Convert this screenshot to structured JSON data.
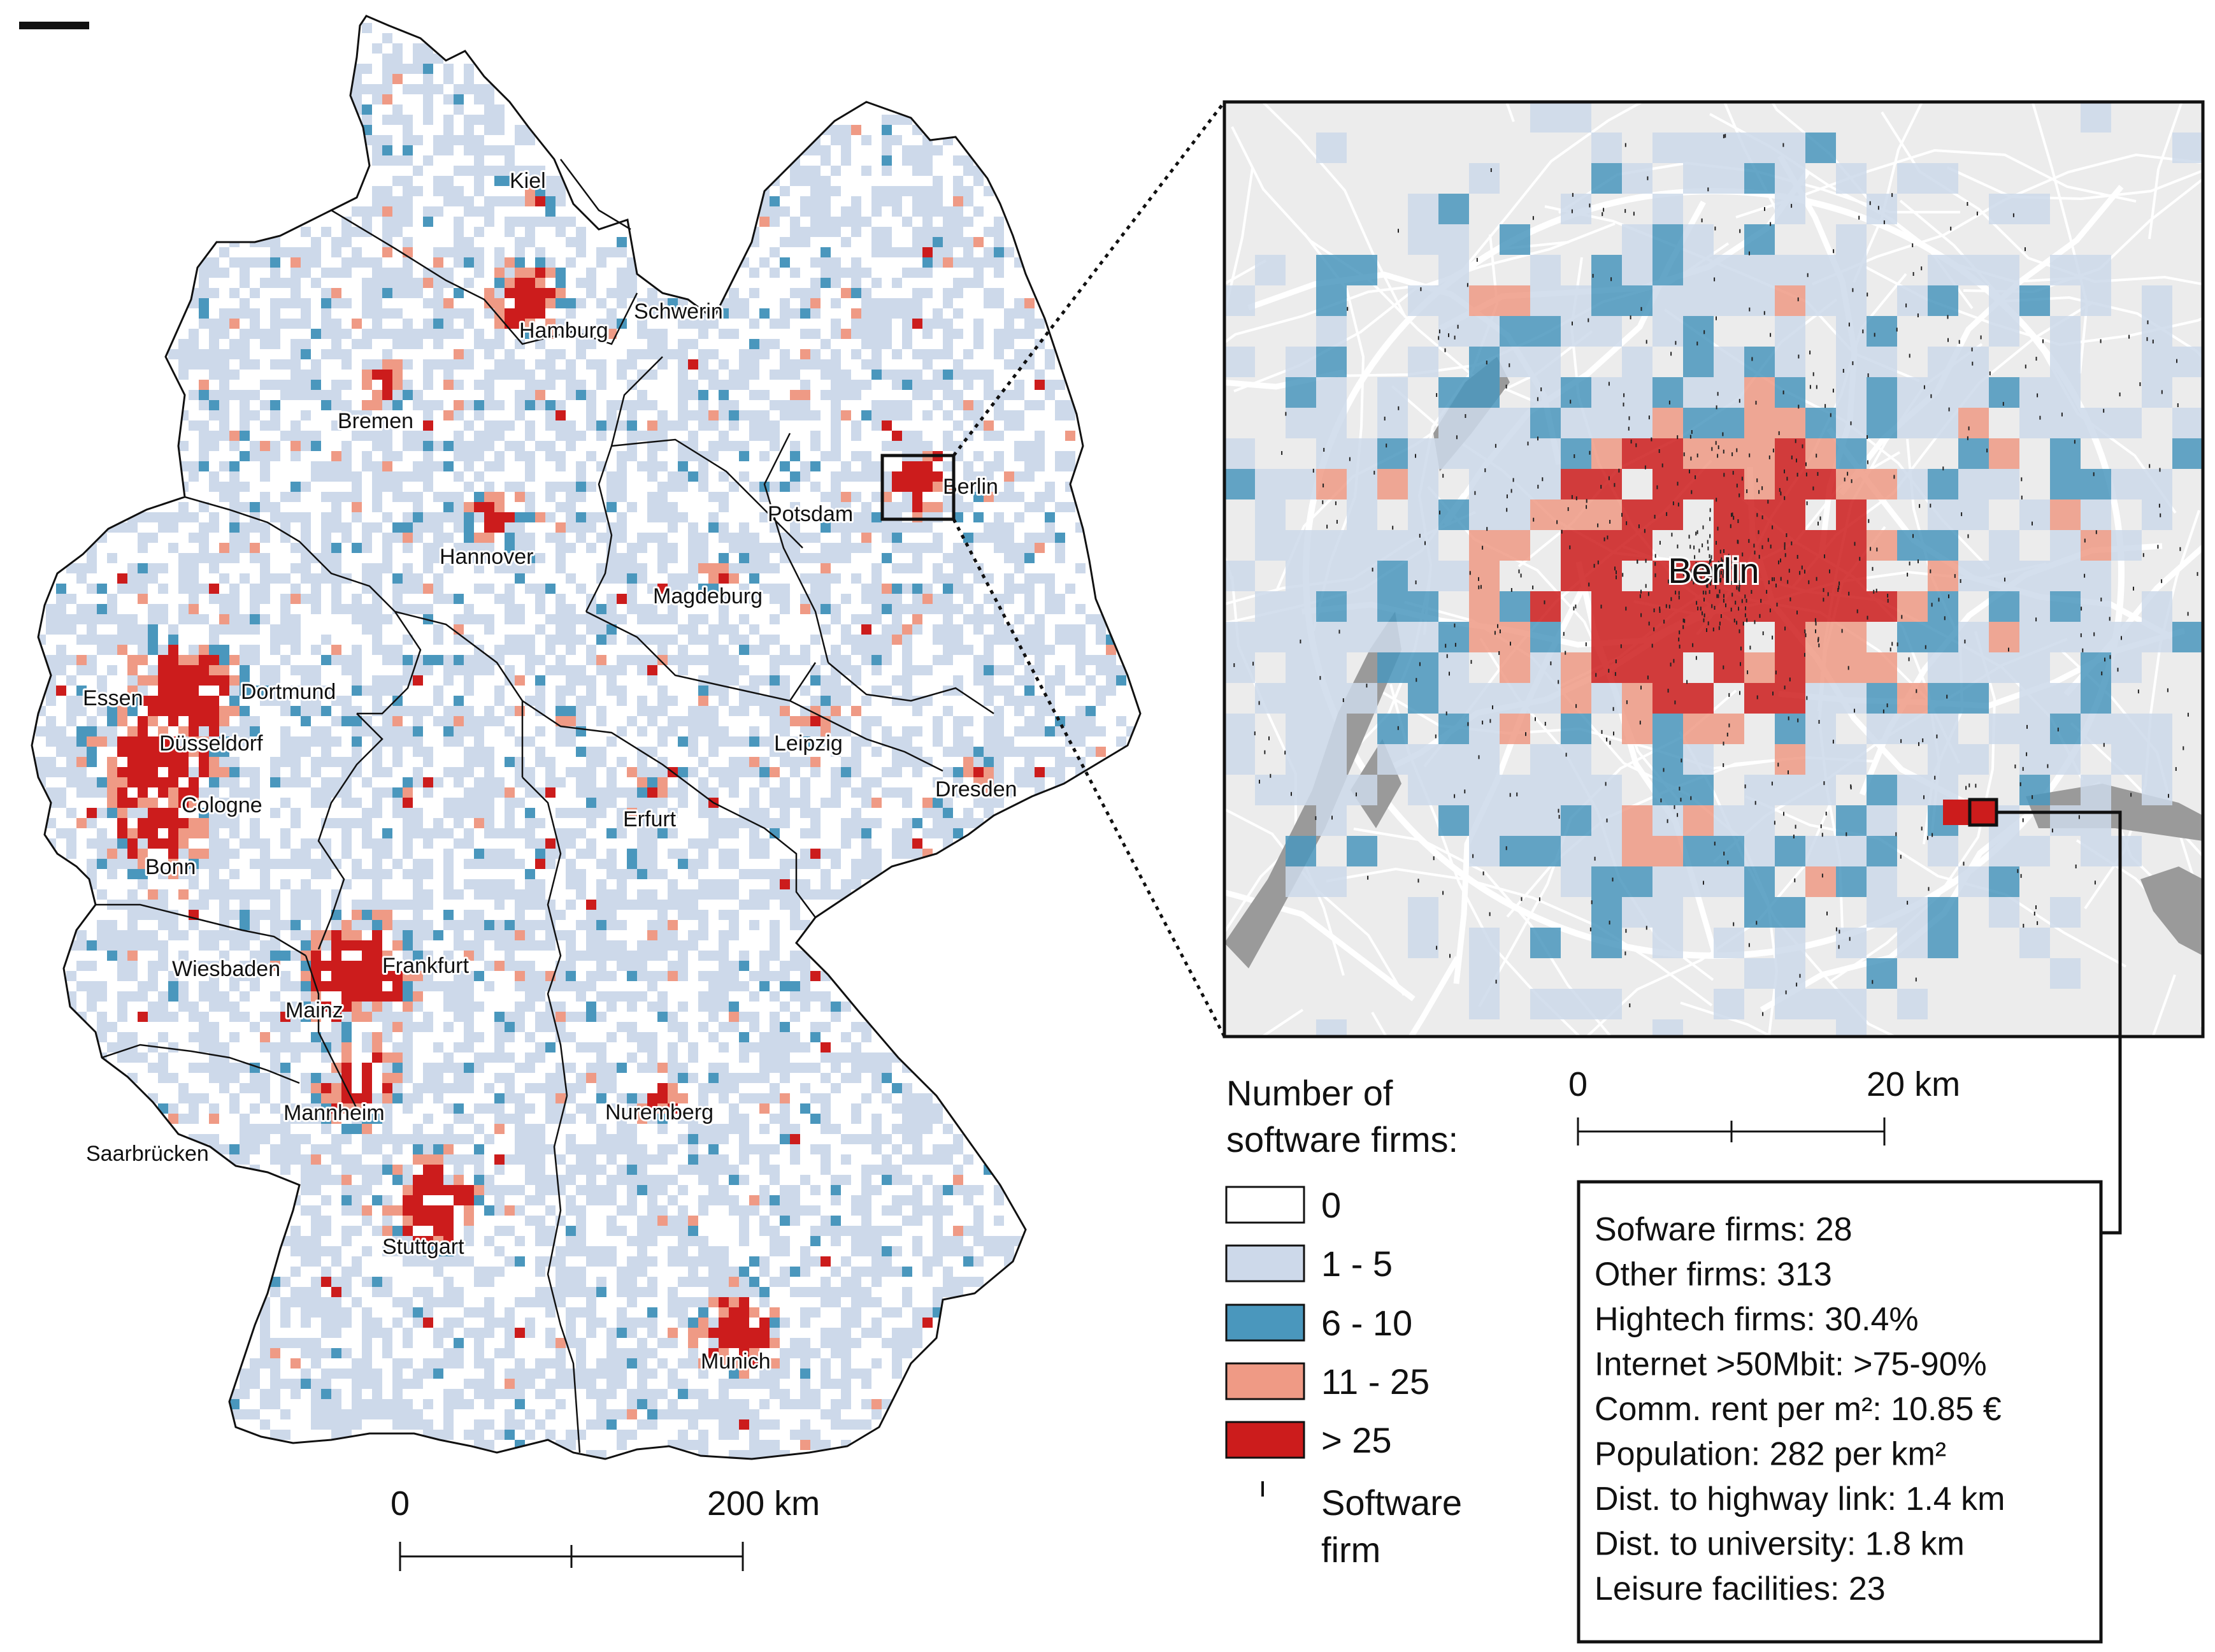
{
  "map": {
    "cities": [
      {
        "name": "Kiel"
      },
      {
        "name": "Hamburg"
      },
      {
        "name": "Schwerin"
      },
      {
        "name": "Bremen"
      },
      {
        "name": "Berlin"
      },
      {
        "name": "Potsdam"
      },
      {
        "name": "Hannover"
      },
      {
        "name": "Magdeburg"
      },
      {
        "name": "Essen"
      },
      {
        "name": "Dortmund"
      },
      {
        "name": "Düsseldorf"
      },
      {
        "name": "Cologne"
      },
      {
        "name": "Bonn"
      },
      {
        "name": "Leipzig"
      },
      {
        "name": "Dresden"
      },
      {
        "name": "Erfurt"
      },
      {
        "name": "Wiesbaden"
      },
      {
        "name": "Frankfurt"
      },
      {
        "name": "Mainz"
      },
      {
        "name": "Mannheim"
      },
      {
        "name": "Nuremberg"
      },
      {
        "name": "Saarbrücken"
      },
      {
        "name": "Stuttgart"
      },
      {
        "name": "Munich"
      }
    ],
    "scale": {
      "start": "0",
      "end": "200 km"
    }
  },
  "inset": {
    "title": "Berlin",
    "scale": {
      "start": "0",
      "end": "20 km"
    }
  },
  "legend": {
    "title_line1": "Number of",
    "title_line2": "software firms:",
    "classes": [
      {
        "label": "0",
        "color": "#ffffff"
      },
      {
        "label": "1 - 5",
        "color": "#cdd9ea"
      },
      {
        "label": "6 - 10",
        "color": "#4a97bd"
      },
      {
        "label": "11 - 25",
        "color": "#ef9a85"
      },
      {
        "label": "> 25",
        "color": "#cc1c1c"
      }
    ],
    "marker_line1": "Software",
    "marker_line2": "firm"
  },
  "info_box": {
    "lines": [
      "Sofware firms: 28",
      "Other firms: 313",
      "Hightech firms: 30.4%",
      "Internet >50Mbit: >75-90%",
      "Comm. rent per m²: 10.85 €",
      "Population: 282 per km²",
      "Dist. to highway link: 1.4 km",
      "Dist. to university: 1.8 km",
      "Leisure facilities: 23"
    ]
  },
  "colors": {
    "zero": "#ffffff",
    "low": "#cdd9ea",
    "mid": "#4a97bd",
    "high": "#ef9a85",
    "top": "#cc1c1c",
    "inset_bg": "#ececec",
    "road": "#ffffff",
    "water": "#9a9a9a"
  }
}
